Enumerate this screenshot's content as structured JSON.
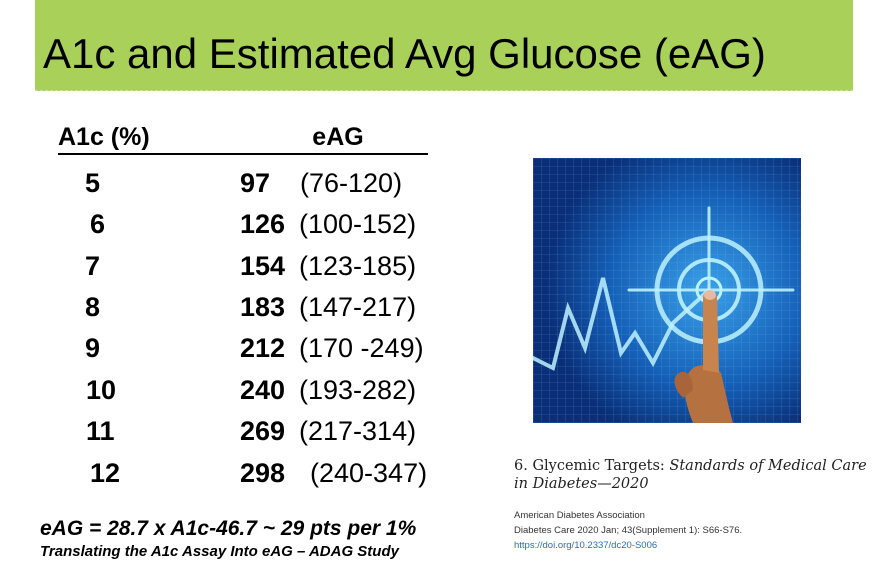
{
  "slide": {
    "title": "A1c and Estimated Avg Glucose (eAG)"
  },
  "table": {
    "header_a1c": "A1c (%)",
    "header_eag": "eAG",
    "rows": [
      {
        "a1c": "5",
        "eag": "97",
        "range": "(76-120)"
      },
      {
        "a1c": "6",
        "eag": "126",
        "range": "(100-152)"
      },
      {
        "a1c": "7",
        "eag": "154",
        "range": "(123-185)"
      },
      {
        "a1c": "8",
        "eag": "183",
        "range": "(147-217)"
      },
      {
        "a1c": "9",
        "eag": "212",
        "range": "(170 -249)"
      },
      {
        "a1c": "10",
        "eag": "240",
        "range": "(193-282)"
      },
      {
        "a1c": "11",
        "eag": "269",
        "range": "(217-314)"
      },
      {
        "a1c": "12",
        "eag": "298",
        "range": "(240-347)"
      }
    ]
  },
  "formula": "eAG = 28.7 x A1c-46.7  ~ 29 pts per 1%",
  "study": "Translating the A1c Assay Into eAG – ADAG Study",
  "reference": {
    "title_regular": "6. Glycemic Targets: ",
    "title_italic": "Standards of Medical Care in Diabetes—2020",
    "org": "American Diabetes Association",
    "citation": "Diabetes Care 2020 Jan; 43(Supplement 1): S66-S76.",
    "doi": "https://doi.org/10.2337/dc20-S006"
  },
  "colors": {
    "title_bar": "#a9d15a",
    "image_bg": "#0c3c8c",
    "link": "#2a6db5"
  }
}
